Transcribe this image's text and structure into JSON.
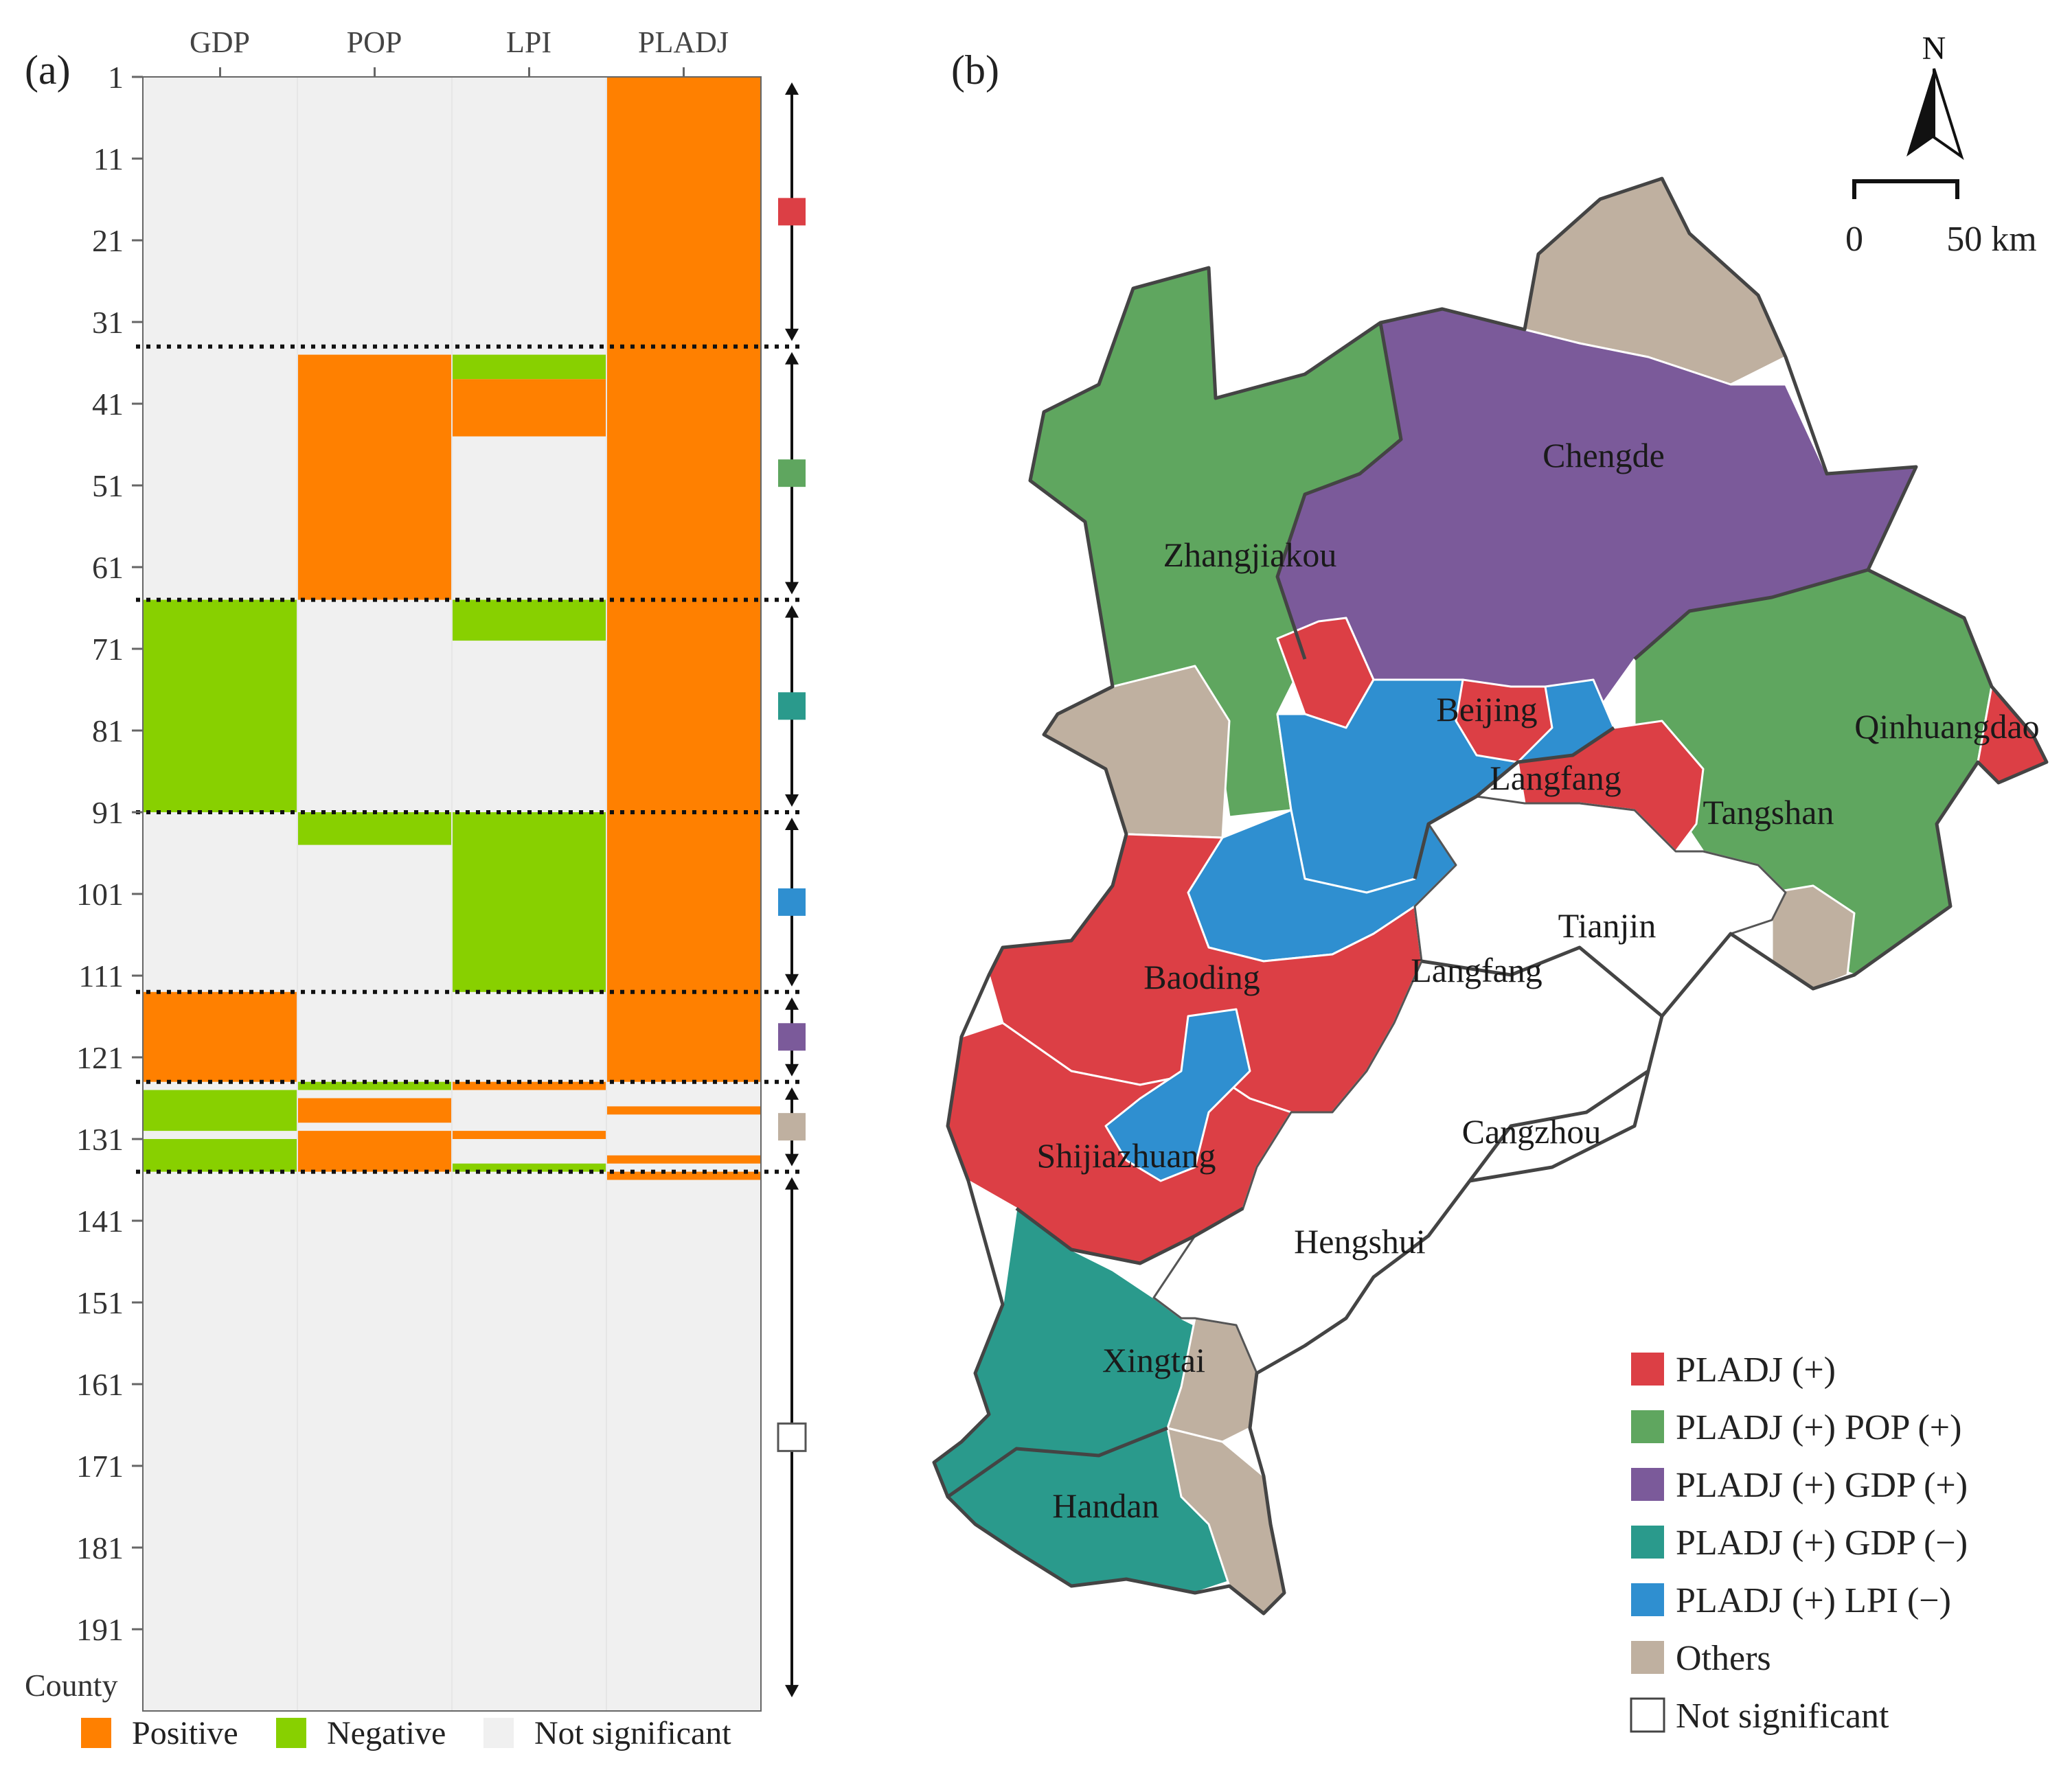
{
  "panel_a": {
    "label": "(a)",
    "y_title": "County",
    "columns": [
      "GDP",
      "POP",
      "LPI",
      "PLADJ"
    ],
    "row_ticks": [
      "1",
      "11",
      "21",
      "31",
      "41",
      "51",
      "61",
      "71",
      "81",
      "91",
      "101",
      "111",
      "121",
      "131",
      "141",
      "151",
      "161",
      "171",
      "181",
      "191"
    ],
    "legend": {
      "positive": "Positive",
      "negative": "Negative",
      "not_significant": "Not significant"
    },
    "colors": {
      "positive": "#ff8000",
      "negative": "#88d000",
      "not_significant": "#f0f0f0",
      "red": "#dc3f45",
      "green": "#5fa65f",
      "teal": "#2a9a8c",
      "blue": "#2f8fd0",
      "purple": "#7b5a9a",
      "tan": "#bfb0a0",
      "white": "#ffffff"
    }
  },
  "chart_data": {
    "type": "heatmap",
    "columns": [
      "GDP",
      "POP",
      "LPI",
      "PLADJ"
    ],
    "row_count": 200,
    "ylabel": "County",
    "values_legend": [
      "Positive",
      "Negative",
      "Not significant"
    ],
    "segments": [
      {
        "column": "PLADJ",
        "from": 1,
        "to": 124,
        "value": "Positive"
      },
      {
        "column": "POP",
        "from": 35,
        "to": 65,
        "value": "Positive"
      },
      {
        "column": "LPI",
        "from": 35,
        "to": 38,
        "value": "Negative"
      },
      {
        "column": "LPI",
        "from": 38,
        "to": 45,
        "value": "Positive"
      },
      {
        "column": "GDP",
        "from": 65,
        "to": 91,
        "value": "Negative"
      },
      {
        "column": "LPI",
        "from": 65,
        "to": 70,
        "value": "Negative"
      },
      {
        "column": "POP",
        "from": 91,
        "to": 95,
        "value": "Negative"
      },
      {
        "column": "LPI",
        "from": 91,
        "to": 113,
        "value": "Negative"
      },
      {
        "column": "GDP",
        "from": 113,
        "to": 124,
        "value": "Positive"
      },
      {
        "column": "GDP",
        "from": 125,
        "to": 130,
        "value": "Negative"
      },
      {
        "column": "GDP",
        "from": 131,
        "to": 135,
        "value": "Negative"
      },
      {
        "column": "POP",
        "from": 124,
        "to": 125,
        "value": "Negative"
      },
      {
        "column": "POP",
        "from": 126,
        "to": 129,
        "value": "Positive"
      },
      {
        "column": "POP",
        "from": 130,
        "to": 135,
        "value": "Positive"
      },
      {
        "column": "LPI",
        "from": 124,
        "to": 125,
        "value": "Positive"
      },
      {
        "column": "LPI",
        "from": 130,
        "to": 131,
        "value": "Positive"
      },
      {
        "column": "LPI",
        "from": 134,
        "to": 135,
        "value": "Negative"
      },
      {
        "column": "PLADJ",
        "from": 127,
        "to": 128,
        "value": "Positive"
      },
      {
        "column": "PLADJ",
        "from": 133,
        "to": 134,
        "value": "Positive"
      },
      {
        "column": "PLADJ",
        "from": 135,
        "to": 136,
        "value": "Positive"
      }
    ],
    "groups": [
      {
        "from": 1,
        "to": 34,
        "color": "red"
      },
      {
        "from": 34,
        "to": 65,
        "color": "green"
      },
      {
        "from": 65,
        "to": 91,
        "color": "teal"
      },
      {
        "from": 91,
        "to": 113,
        "color": "blue"
      },
      {
        "from": 113,
        "to": 124,
        "color": "purple"
      },
      {
        "from": 124,
        "to": 135,
        "color": "tan"
      },
      {
        "from": 135,
        "to": 200,
        "color": "white"
      }
    ]
  },
  "panel_b": {
    "label": "(b)",
    "north": "N",
    "scale": {
      "zero": "0",
      "fifty": "50 km"
    },
    "cities": [
      {
        "name": "Chengde",
        "color": "purple"
      },
      {
        "name": "Zhangjiakou",
        "color": "green"
      },
      {
        "name": "Beijing",
        "color": "blue"
      },
      {
        "name": "Langfang",
        "color": "red"
      },
      {
        "name": "Qinhuangdao",
        "color": "green"
      },
      {
        "name": "Tangshan",
        "color": "green"
      },
      {
        "name": "Tianjin",
        "color": "white"
      },
      {
        "name": "Langfang",
        "color": "white"
      },
      {
        "name": "Baoding",
        "color": "red"
      },
      {
        "name": "Cangzhou",
        "color": "white"
      },
      {
        "name": "Shijiazhuang",
        "color": "blue"
      },
      {
        "name": "Hengshui",
        "color": "white"
      },
      {
        "name": "Xingtai",
        "color": "teal"
      },
      {
        "name": "Handan",
        "color": "teal"
      }
    ],
    "legend": [
      {
        "label": "PLADJ (+)",
        "color": "#dc3f45"
      },
      {
        "label": "PLADJ (+) POP (+)",
        "color": "#5fa65f"
      },
      {
        "label": "PLADJ (+) GDP (+)",
        "color": "#7b5a9a"
      },
      {
        "label": "PLADJ (+) GDP (−)",
        "color": "#2a9a8c"
      },
      {
        "label": "PLADJ (+) LPI (−)",
        "color": "#2f8fd0"
      },
      {
        "label": "Others",
        "color": "#bfb0a0"
      },
      {
        "label": "Not significant",
        "color": "#ffffff"
      }
    ]
  }
}
